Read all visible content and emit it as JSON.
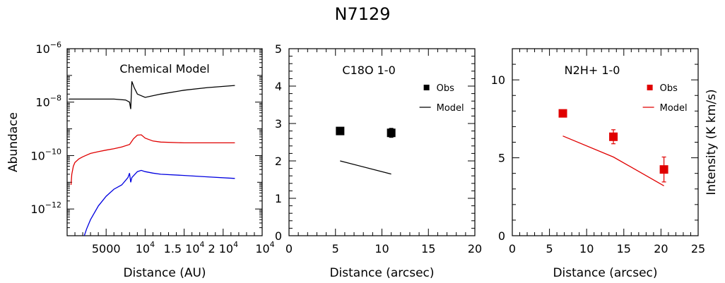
{
  "figure_title": "N7129",
  "chart_data": [
    {
      "type": "line",
      "title": "Chemical Model",
      "xlabel": "Distance (AU)",
      "ylabel": "Abundace",
      "xlim": [
        0,
        25000
      ],
      "ylog": true,
      "ylim": [
        1e-13,
        1e-06
      ],
      "x_ticks": [
        {
          "v": 5000,
          "base": "5000",
          "sup": ""
        },
        {
          "v": 10000,
          "base": "10",
          "sup": "4"
        },
        {
          "v": 15000,
          "base": "1.5 10",
          "sup": "4"
        },
        {
          "v": 20000,
          "base": "2 10",
          "sup": "4"
        }
      ],
      "y_ticks": [
        {
          "v": 1e-12,
          "base": "10",
          "sup": "−12"
        },
        {
          "v": 1e-10,
          "base": "10",
          "sup": "−10"
        },
        {
          "v": 1e-08,
          "base": "10",
          "sup": "−8"
        },
        {
          "v": 1e-06,
          "base": "10",
          "sup": "−6"
        }
      ],
      "series": [
        {
          "color": "#000000",
          "x": [
            200,
            2000,
            4000,
            6000,
            7500,
            8000,
            8150,
            8300,
            8600,
            9000,
            10000,
            12000,
            15000,
            18000,
            21500
          ],
          "y": [
            1.3e-08,
            1.3e-08,
            1.3e-08,
            1.3e-08,
            1.2e-08,
            1e-08,
            5.5e-09,
            6e-08,
            3.5e-08,
            2e-08,
            1.5e-08,
            2e-08,
            2.8e-08,
            3.5e-08,
            4.2e-08
          ]
        },
        {
          "color": "#e00000",
          "x": [
            500,
            600,
            800,
            1000,
            1500,
            2000,
            3000,
            4000,
            5000,
            6000,
            7000,
            8000,
            8150,
            8500,
            9000,
            9500,
            10000,
            11000,
            12000,
            15000,
            18000,
            21500
          ],
          "y": [
            8e-12,
            2e-11,
            4e-11,
            5.5e-11,
            7.5e-11,
            9e-11,
            1.2e-10,
            1.4e-10,
            1.6e-10,
            1.8e-10,
            2.1e-10,
            2.6e-10,
            3e-10,
            4.2e-10,
            5.8e-10,
            6e-10,
            4.5e-10,
            3.5e-10,
            3.2e-10,
            3e-10,
            3e-10,
            3e-10
          ]
        },
        {
          "color": "#0000e0",
          "x": [
            2200,
            2500,
            3000,
            4000,
            5000,
            6000,
            7000,
            7800,
            8000,
            8150,
            8300,
            9000,
            9500,
            10000,
            11000,
            12000,
            15000,
            18000,
            21500
          ],
          "y": [
            1e-13,
            1.8e-13,
            4e-13,
            1.3e-12,
            3e-12,
            5.5e-12,
            8e-12,
            1.5e-11,
            2.2e-11,
            1e-11,
            1.5e-11,
            2.5e-11,
            2.8e-11,
            2.5e-11,
            2.2e-11,
            2e-11,
            1.8e-11,
            1.6e-11,
            1.4e-11
          ]
        }
      ]
    },
    {
      "type": "scatter",
      "title": "C18O 1-0",
      "xlabel": "Distance (arcsec)",
      "ylabel": "",
      "xlim": [
        0,
        20
      ],
      "ylim": [
        0,
        5
      ],
      "x_ticks": [
        0,
        5,
        10,
        15,
        20
      ],
      "y_ticks": [
        0,
        1,
        2,
        3,
        4,
        5
      ],
      "legend": {
        "obs": "Obs",
        "model": "Model",
        "color": "#000000"
      },
      "obs": {
        "x": [
          5.5,
          11
        ],
        "y": [
          2.8,
          2.75
        ],
        "err": [
          0.05,
          0.12
        ]
      },
      "model": {
        "x": [
          5.5,
          11
        ],
        "y": [
          2.0,
          1.65
        ]
      }
    },
    {
      "type": "scatter",
      "title": "N2H+ 1-0",
      "xlabel": "Distance (arcsec)",
      "ylabel": "Intensity (K km/s)",
      "xlim": [
        0,
        25
      ],
      "ylim": [
        0,
        12
      ],
      "x_ticks": [
        0,
        5,
        10,
        15,
        20,
        25
      ],
      "y_ticks": [
        0,
        5,
        10
      ],
      "legend": {
        "obs": "Obs",
        "model": "Model",
        "color": "#e00000"
      },
      "obs": {
        "x": [
          6.8,
          13.6,
          20.4
        ],
        "y": [
          7.85,
          6.35,
          4.25
        ],
        "err": [
          0.1,
          0.45,
          0.8
        ]
      },
      "model": {
        "x": [
          6.8,
          13.6,
          20.4
        ],
        "y": [
          6.4,
          5.05,
          3.2
        ]
      }
    }
  ]
}
